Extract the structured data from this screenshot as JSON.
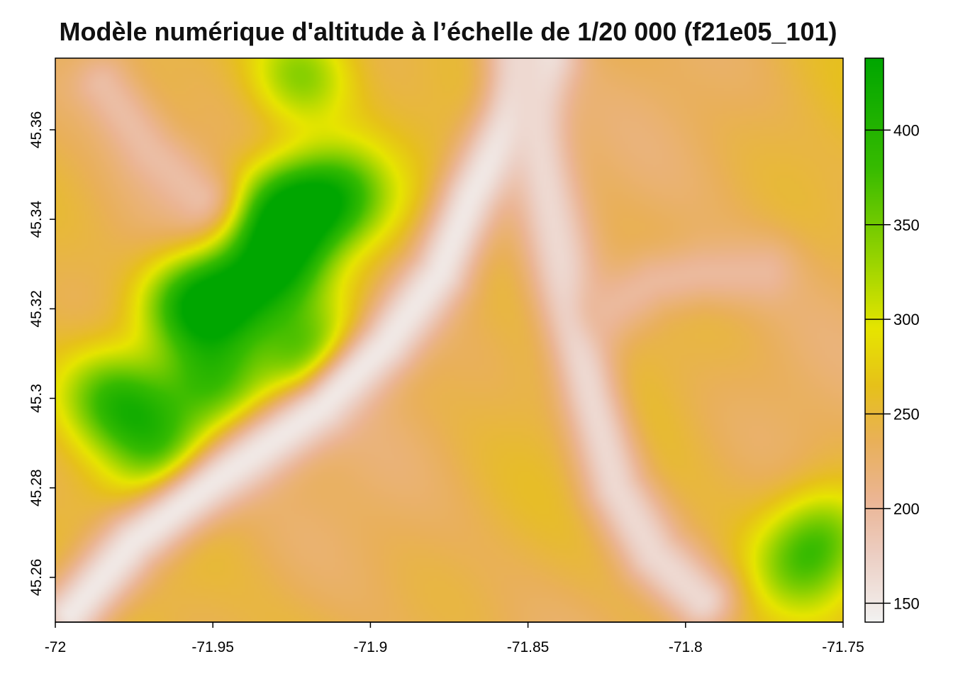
{
  "title": "Modèle numérique d'altitude à l’échelle de 1/20 000 (f21e05_101)",
  "chart_data": {
    "type": "heatmap",
    "title": "Modèle numérique d'altitude à l’échelle de 1/20 000 (f21e05_101)",
    "xlabel": "",
    "ylabel": "",
    "xlim": [
      -72.0,
      -71.75
    ],
    "ylim": [
      45.25,
      45.376
    ],
    "x_ticks": [
      -72,
      -71.95,
      -71.9,
      -71.85,
      -71.8,
      -71.75
    ],
    "x_tick_labels": [
      "-72",
      "-71.95",
      "-71.9",
      "-71.85",
      "-71.8",
      "-71.75"
    ],
    "y_ticks": [
      45.26,
      45.28,
      45.3,
      45.32,
      45.34,
      45.36
    ],
    "y_tick_labels": [
      "45.26",
      "45.28",
      "45.3",
      "45.32",
      "45.34",
      "45.36"
    ],
    "legend": {
      "placement": "right",
      "range": [
        140,
        438
      ],
      "ticks": [
        150,
        200,
        250,
        300,
        350,
        400
      ],
      "tick_labels": [
        "150",
        "200",
        "250",
        "300",
        "350",
        "400"
      ],
      "colors": [
        {
          "value": 140,
          "color": "#f2f2f2"
        },
        {
          "value": 175,
          "color": "#eccfc4"
        },
        {
          "value": 205,
          "color": "#ebb594"
        },
        {
          "value": 235,
          "color": "#e9b05a"
        },
        {
          "value": 265,
          "color": "#e6c11a"
        },
        {
          "value": 295,
          "color": "#e6e500"
        },
        {
          "value": 335,
          "color": "#91d200"
        },
        {
          "value": 380,
          "color": "#37bb00"
        },
        {
          "value": 438,
          "color": "#00a600"
        }
      ]
    },
    "features": {
      "highlands": [
        {
          "x": -71.927,
          "y": 45.342,
          "elevation": 415
        },
        {
          "x": -71.93,
          "y": 45.33,
          "elevation": 400
        },
        {
          "x": -71.945,
          "y": 45.322,
          "elevation": 390
        },
        {
          "x": -71.958,
          "y": 45.321,
          "elevation": 385
        },
        {
          "x": -71.91,
          "y": 45.345,
          "elevation": 390
        },
        {
          "x": -71.92,
          "y": 45.31,
          "elevation": 370
        },
        {
          "x": -71.95,
          "y": 45.304,
          "elevation": 360
        },
        {
          "x": -71.975,
          "y": 45.297,
          "elevation": 345
        },
        {
          "x": -71.985,
          "y": 45.302,
          "elevation": 330
        },
        {
          "x": -71.922,
          "y": 45.372,
          "elevation": 340
        },
        {
          "x": -71.965,
          "y": 45.288,
          "elevation": 330
        },
        {
          "x": -71.755,
          "y": 45.27,
          "elevation": 340
        },
        {
          "x": -71.765,
          "y": 45.262,
          "elevation": 325
        }
      ],
      "valleys": [
        {
          "name": "",
          "points": [
            [
              -71.995,
              45.252
            ],
            [
              -71.975,
              45.268
            ],
            [
              -71.948,
              45.282
            ],
            [
              -71.915,
              45.298
            ],
            [
              -71.895,
              45.312
            ],
            [
              -71.878,
              45.328
            ],
            [
              -71.868,
              45.345
            ],
            [
              -71.855,
              45.362
            ],
            [
              -71.845,
              45.376
            ]
          ],
          "elevation": 150
        },
        {
          "name": "",
          "points": [
            [
              -71.852,
              45.376
            ],
            [
              -71.845,
              45.35
            ],
            [
              -71.838,
              45.325
            ],
            [
              -71.83,
              45.3
            ],
            [
              -71.822,
              45.28
            ],
            [
              -71.81,
              45.265
            ],
            [
              -71.795,
              45.255
            ]
          ],
          "elevation": 165
        },
        {
          "name": "",
          "points": [
            [
              -71.985,
              45.37
            ],
            [
              -71.97,
              45.355
            ],
            [
              -71.955,
              45.345
            ]
          ],
          "elevation": 195
        },
        {
          "name": "",
          "points": [
            [
              -71.825,
              45.32
            ],
            [
              -71.81,
              45.326
            ],
            [
              -71.795,
              45.328
            ],
            [
              -71.775,
              45.328
            ]
          ],
          "elevation": 200
        }
      ]
    }
  }
}
